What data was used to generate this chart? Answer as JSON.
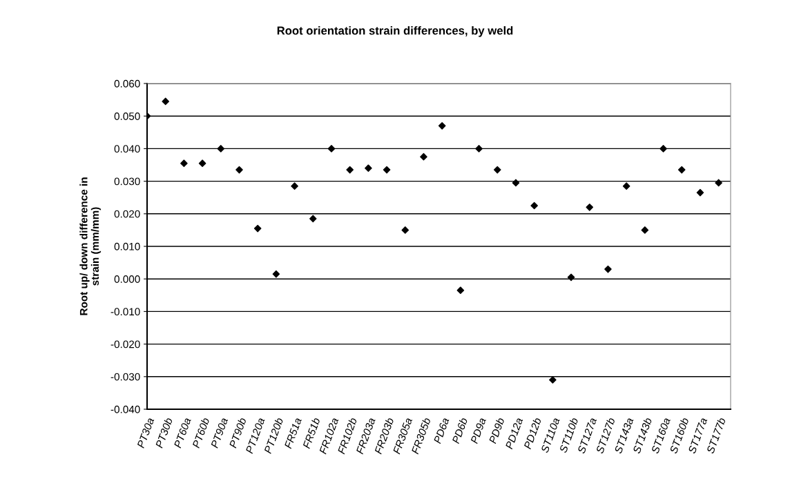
{
  "chart_data": {
    "type": "scatter",
    "title": "Root orientation strain differences, by weld",
    "ylabel": "Root up/ down difference in\nstrain (mm/mm)",
    "categories": [
      "PT30a",
      "PT30b",
      "PT60a",
      "PT60b",
      "PT90a",
      "PT90b",
      "PT120a",
      "PT120b",
      "FR51a",
      "FR51b",
      "FR102a",
      "FR102b",
      "FR203a",
      "FR203b",
      "FR305a",
      "FR305b",
      "PD6a",
      "PD6b",
      "PD9a",
      "PD9b",
      "PD12a",
      "PD12b",
      "ST110a",
      "ST110b",
      "ST127a",
      "ST127b",
      "ST143a",
      "ST143b",
      "ST160a",
      "ST160b",
      "ST177a",
      "ST177b"
    ],
    "values": [
      0.05,
      0.0545,
      0.0355,
      0.0355,
      0.04,
      0.0335,
      0.0155,
      0.0015,
      0.0285,
      0.0185,
      0.04,
      0.0335,
      0.034,
      0.0335,
      0.015,
      0.0375,
      0.047,
      -0.0035,
      0.04,
      0.0335,
      0.0295,
      0.0225,
      -0.031,
      0.0005,
      0.022,
      0.003,
      0.0285,
      0.015,
      0.04,
      0.0335,
      0.0265,
      0.0295
    ],
    "color": "#000000",
    "marker": "diamond",
    "grid": "y",
    "ylim": [
      -0.04,
      0.06
    ],
    "yticks": [
      {
        "value": -0.04,
        "label": "-0.040"
      },
      {
        "value": -0.03,
        "label": "-0.030"
      },
      {
        "value": -0.02,
        "label": "-0.020"
      },
      {
        "value": -0.01,
        "label": "-0.010"
      },
      {
        "value": 0,
        "label": "0.000"
      },
      {
        "value": 0.01,
        "label": "0.010"
      },
      {
        "value": 0.02,
        "label": "0.020"
      },
      {
        "value": 0.03,
        "label": "0.030"
      },
      {
        "value": 0.04,
        "label": "0.040"
      },
      {
        "value": 0.05,
        "label": "0.050"
      },
      {
        "value": 0.06,
        "label": "0.060"
      }
    ]
  }
}
